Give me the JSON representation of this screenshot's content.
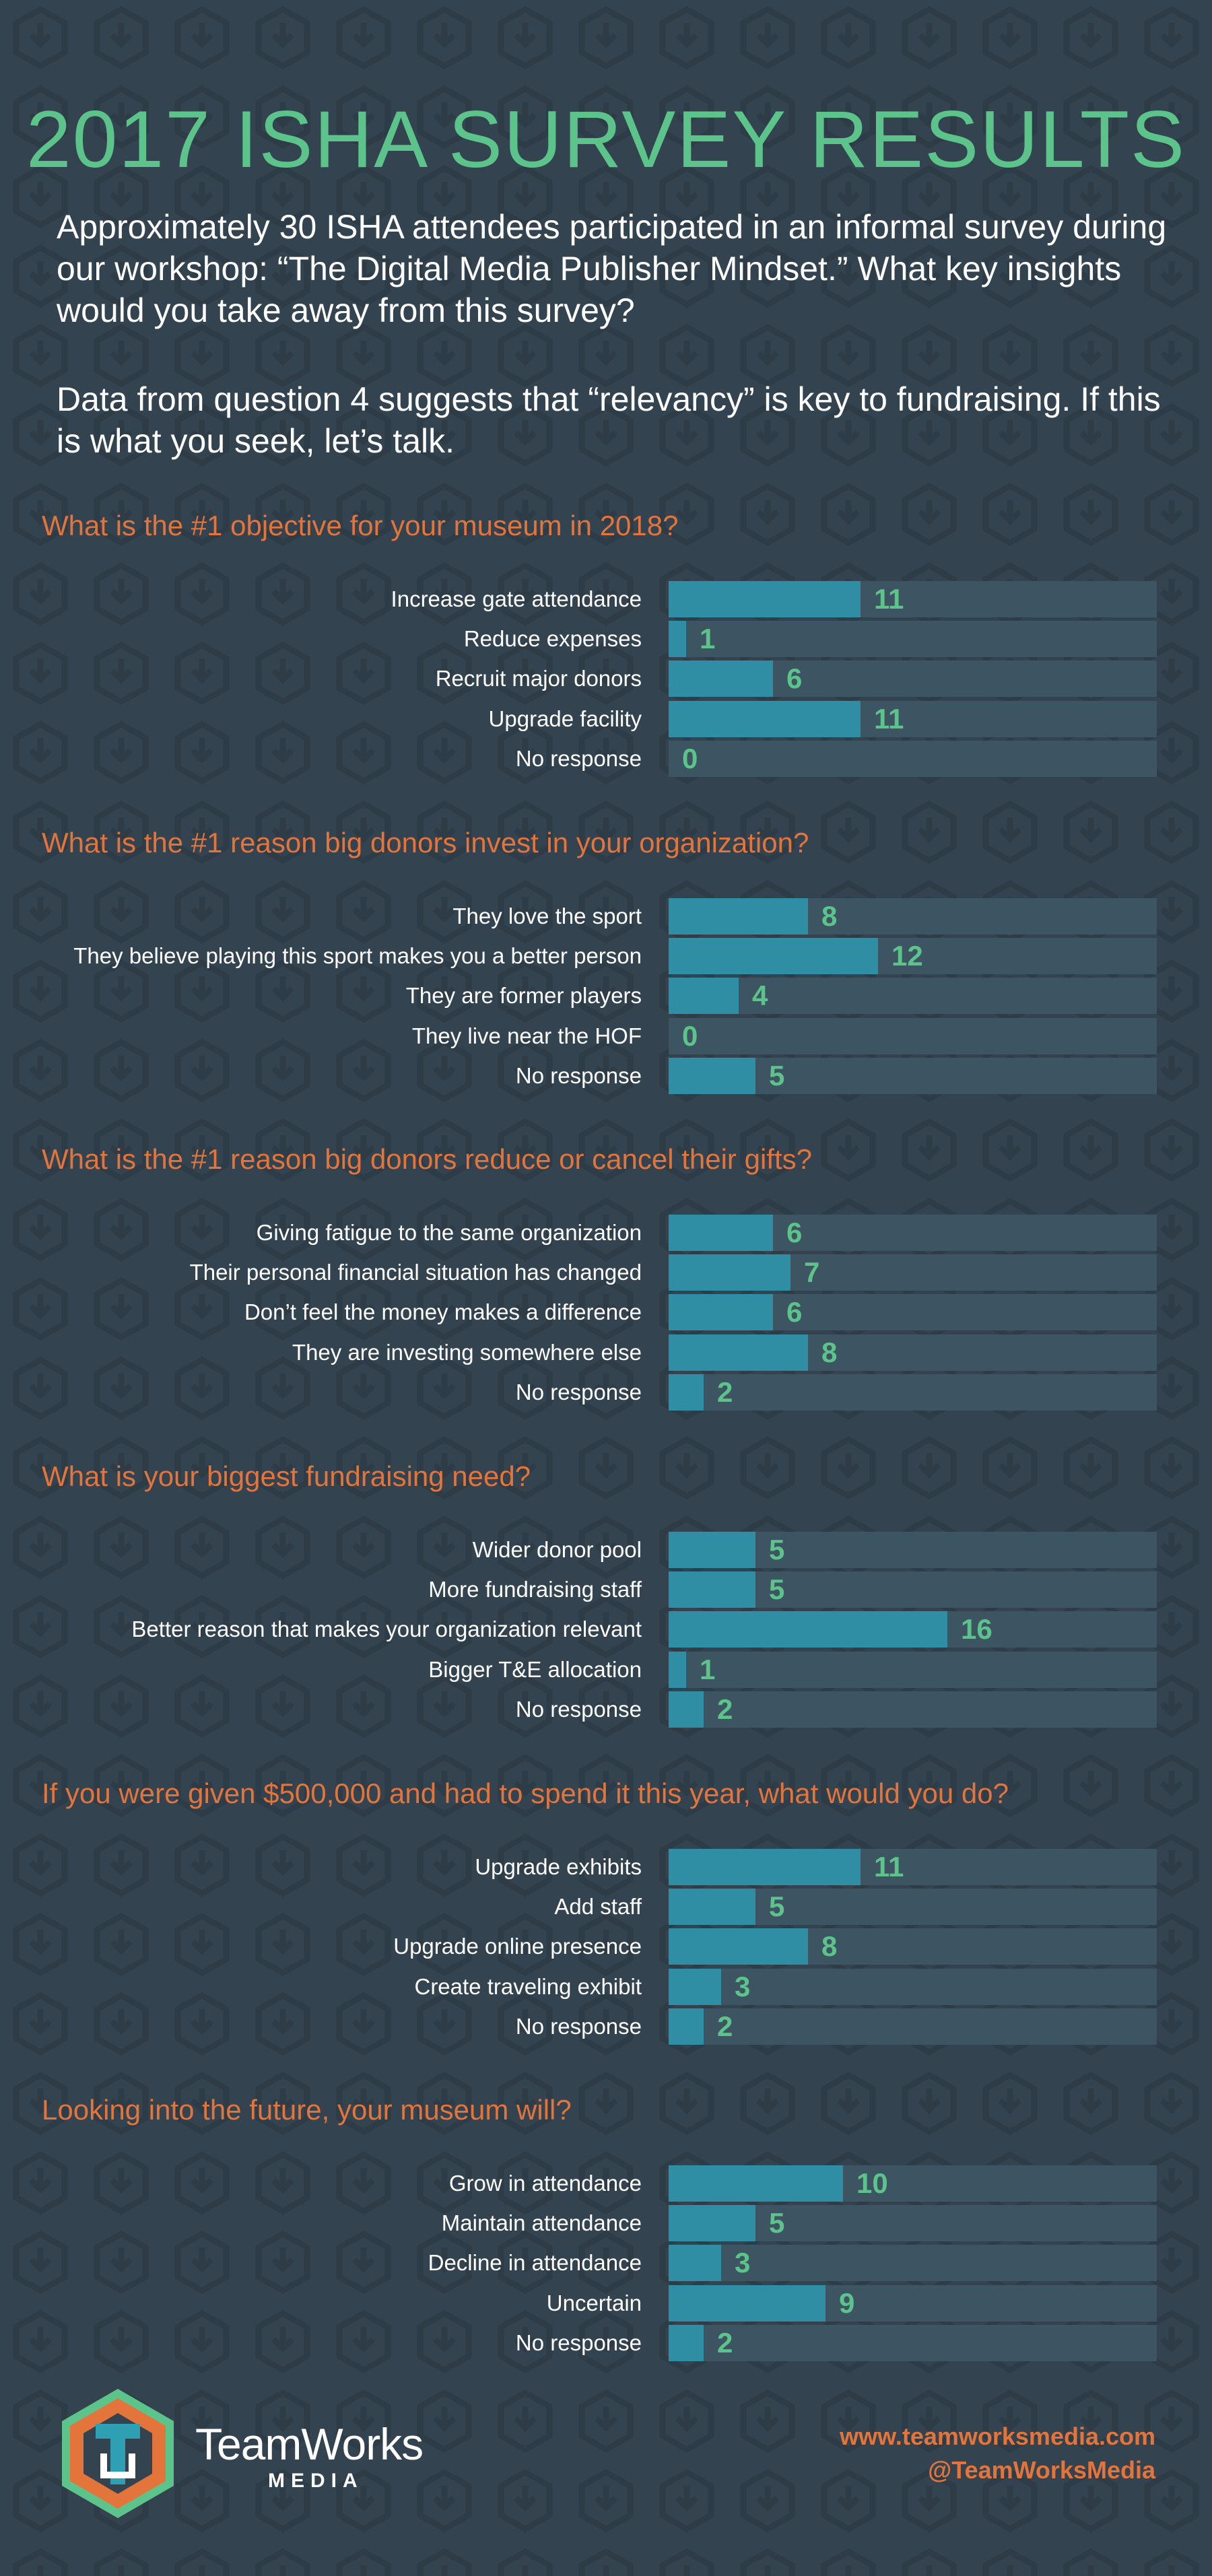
{
  "title": "2017 ISHA SURVEY RESULTS",
  "intro": [
    "Approximately 30 ISHA attendees participated in an informal survey during our workshop: “The Digital Media Publisher Mindset.” What key insights would you take away from this survey?",
    "Data from question 4 suggests that “relevancy” is key to fundraising. If this is what you seek, let’s talk."
  ],
  "colors": {
    "background": "#33434f",
    "title": "#5cc48a",
    "question": "#e3743b",
    "bar_fill": "#2f8ea3",
    "bar_track": "#3d5563",
    "value": "#5cc48a"
  },
  "chart_data": [
    {
      "type": "bar",
      "title": "What is the #1 objective for your museum in 2018?",
      "categories": [
        "Increase gate attendance",
        "Reduce expenses",
        "Recruit major donors",
        "Upgrade facility",
        "No response"
      ],
      "values": [
        11,
        1,
        6,
        11,
        0
      ],
      "xlim": [
        0,
        28
      ]
    },
    {
      "type": "bar",
      "title": "What is the #1 reason big donors invest in your organization?",
      "categories": [
        "They love the sport",
        "They believe playing this sport makes you a better person",
        "They are former players",
        "They live near the HOF",
        "No response"
      ],
      "values": [
        8,
        12,
        4,
        0,
        5
      ],
      "xlim": [
        0,
        28
      ]
    },
    {
      "type": "bar",
      "title": "What is the #1 reason big donors reduce or cancel their gifts?",
      "categories": [
        "Giving fatigue to the same organization",
        "Their personal financial situation has changed",
        "Don’t feel the money makes a difference",
        "They are investing somewhere else",
        "No response"
      ],
      "values": [
        6,
        7,
        6,
        8,
        2
      ],
      "xlim": [
        0,
        28
      ]
    },
    {
      "type": "bar",
      "title": "What is your biggest fundraising need?",
      "categories": [
        "Wider donor pool",
        "More fundraising staff",
        "Better reason that makes your organization relevant",
        "Bigger T&E allocation",
        "No response"
      ],
      "values": [
        5,
        5,
        16,
        1,
        2
      ],
      "xlim": [
        0,
        28
      ]
    },
    {
      "type": "bar",
      "title": "If you were given $500,000 and had to spend it this year, what would you do?",
      "categories": [
        "Upgrade exhibits",
        "Add staff",
        "Upgrade online presence",
        "Create traveling exhibit",
        "No response"
      ],
      "values": [
        11,
        5,
        8,
        3,
        2
      ],
      "xlim": [
        0,
        28
      ]
    },
    {
      "type": "bar",
      "title": "Looking into the future, your museum will?",
      "categories": [
        "Grow in attendance",
        "Maintain attendance",
        "Decline in attendance",
        "Uncertain",
        "No response"
      ],
      "values": [
        10,
        5,
        3,
        9,
        2
      ],
      "xlim": [
        0,
        28
      ]
    }
  ],
  "brand": {
    "name": "TeamWorks",
    "sub": "MEDIA",
    "website": "www.teamworksmedia.com",
    "handle": "@TeamWorksMedia",
    "logo_icon": "teamworks-hexagon-logo",
    "logo_colors": [
      "#2f9fb3",
      "#e3743b",
      "#5cc48a"
    ]
  }
}
